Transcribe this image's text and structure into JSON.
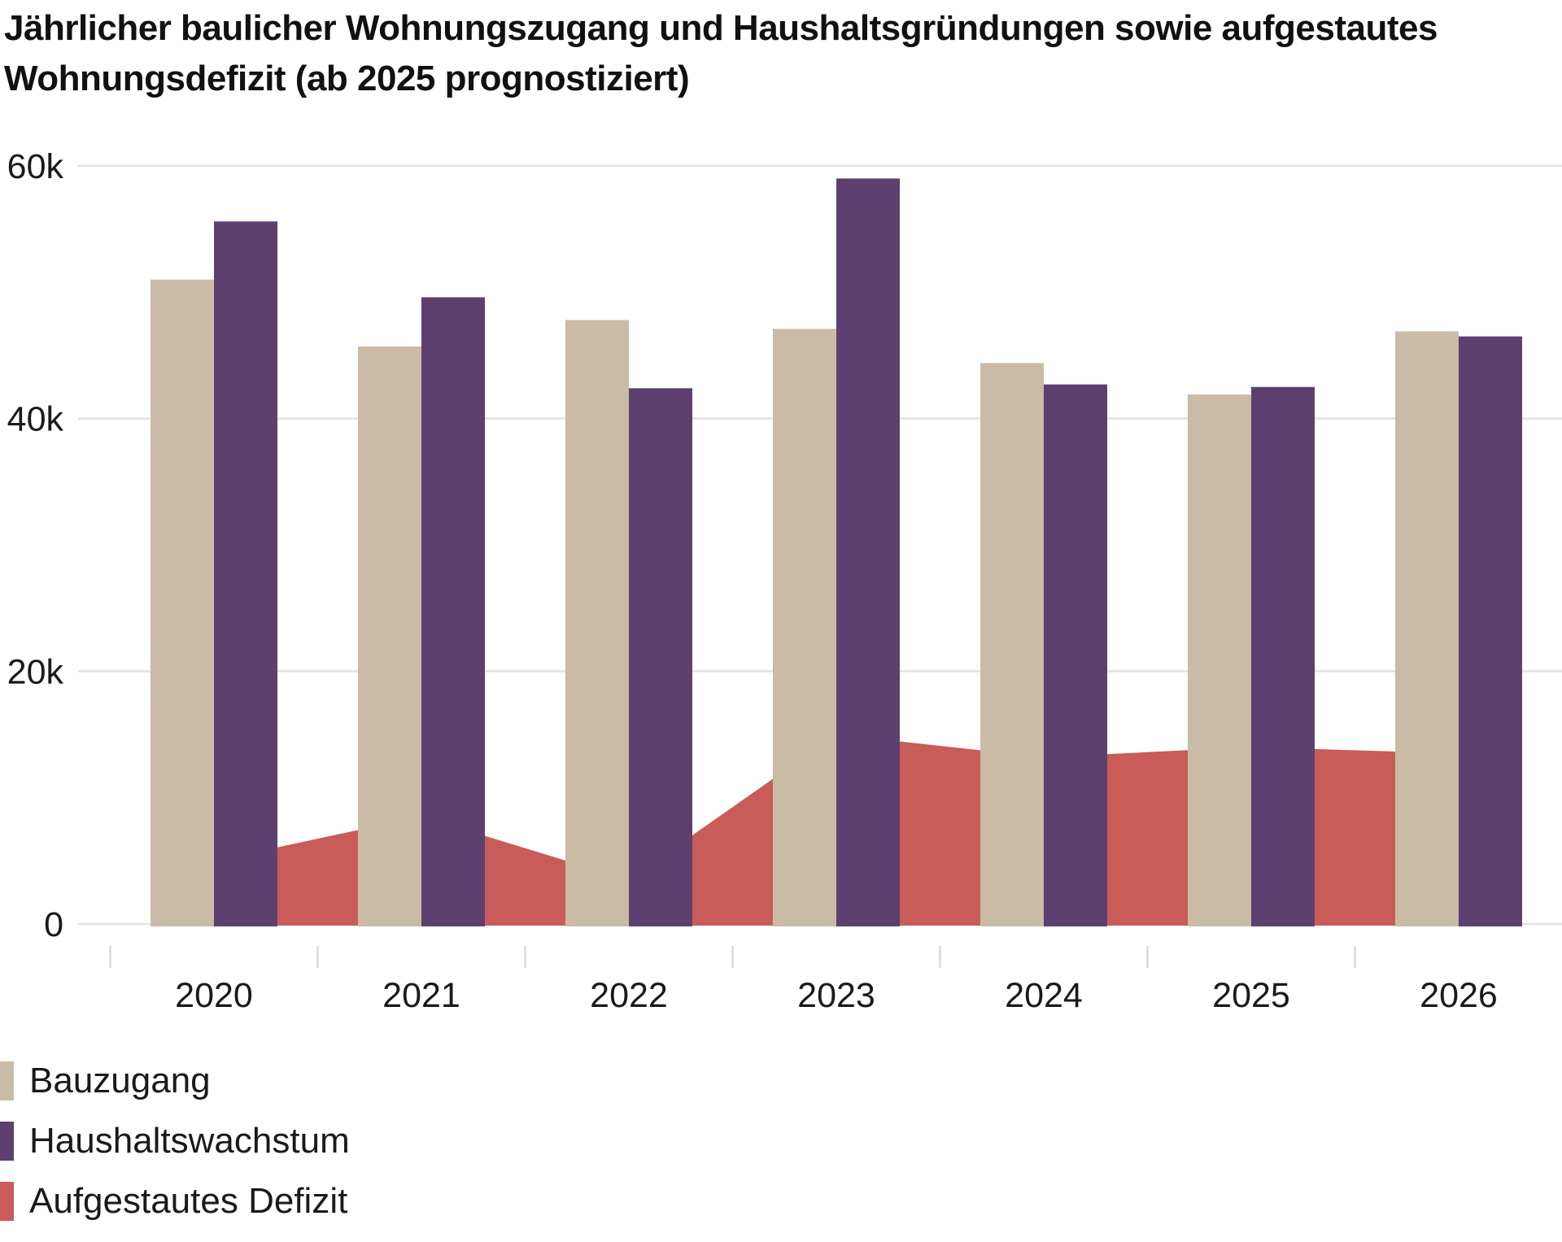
{
  "title": "Jährlicher baulicher Wohnungszugang und Haushaltsgründungen sowie aufgestautes Wohnungsdefizit (ab 2025 prognostiziert)",
  "title_lines": [
    "Jährlicher baulicher Wohnungszugang und Haushaltsgründungen sowie aufgestautes",
    "Wohnungsdefizit (ab 2025 prognostiziert)"
  ],
  "legend": [
    {
      "label": "Bauzugang",
      "color": "#cabba6",
      "series_type": "bar"
    },
    {
      "label": "Haushaltswachstum",
      "color": "#5d3f70",
      "series_type": "bar"
    },
    {
      "label": "Aufgestautes Defizit",
      "color": "#c95b58",
      "series_type": "area"
    }
  ],
  "chart_data": {
    "type": "bar",
    "subtype": "grouped-bars-with-area-overlay",
    "title": "Jährlicher baulicher Wohnungszugang und Haushaltsgründungen sowie aufgestautes Wohnungsdefizit (ab 2025 prognostiziert)",
    "categories": [
      "2020",
      "2021",
      "2022",
      "2023",
      "2024",
      "2025",
      "2026"
    ],
    "series": [
      {
        "name": "Bauzugang",
        "type": "bar",
        "color": "#cabba6",
        "values": [
          51000,
          45700,
          47800,
          47100,
          44400,
          41900,
          46900
        ]
      },
      {
        "name": "Haushaltswachstum",
        "type": "bar",
        "color": "#5d3f70",
        "values": [
          55600,
          49600,
          42400,
          59000,
          42700,
          42500,
          46500
        ]
      },
      {
        "name": "Aufgestautes Defizit",
        "type": "area",
        "color": "#c95b58",
        "values": [
          5000,
          8500,
          3500,
          15000,
          13200,
          14000,
          13500
        ]
      }
    ],
    "xlabel": "",
    "ylabel": "",
    "y_ticks": [
      {
        "value": 0,
        "label": "0"
      },
      {
        "value": 20000,
        "label": "20k"
      },
      {
        "value": 40000,
        "label": "40k"
      },
      {
        "value": 60000,
        "label": "60k"
      }
    ],
    "ylim": [
      0,
      65000
    ],
    "grid": "horizontal",
    "legend_position": "bottom-left"
  },
  "colors": {
    "background": "#ffffff",
    "grid": "#e2e2e2",
    "tick": "#d9d9d9",
    "axis_text": "#1a1a1a",
    "title_text": "#111111"
  }
}
